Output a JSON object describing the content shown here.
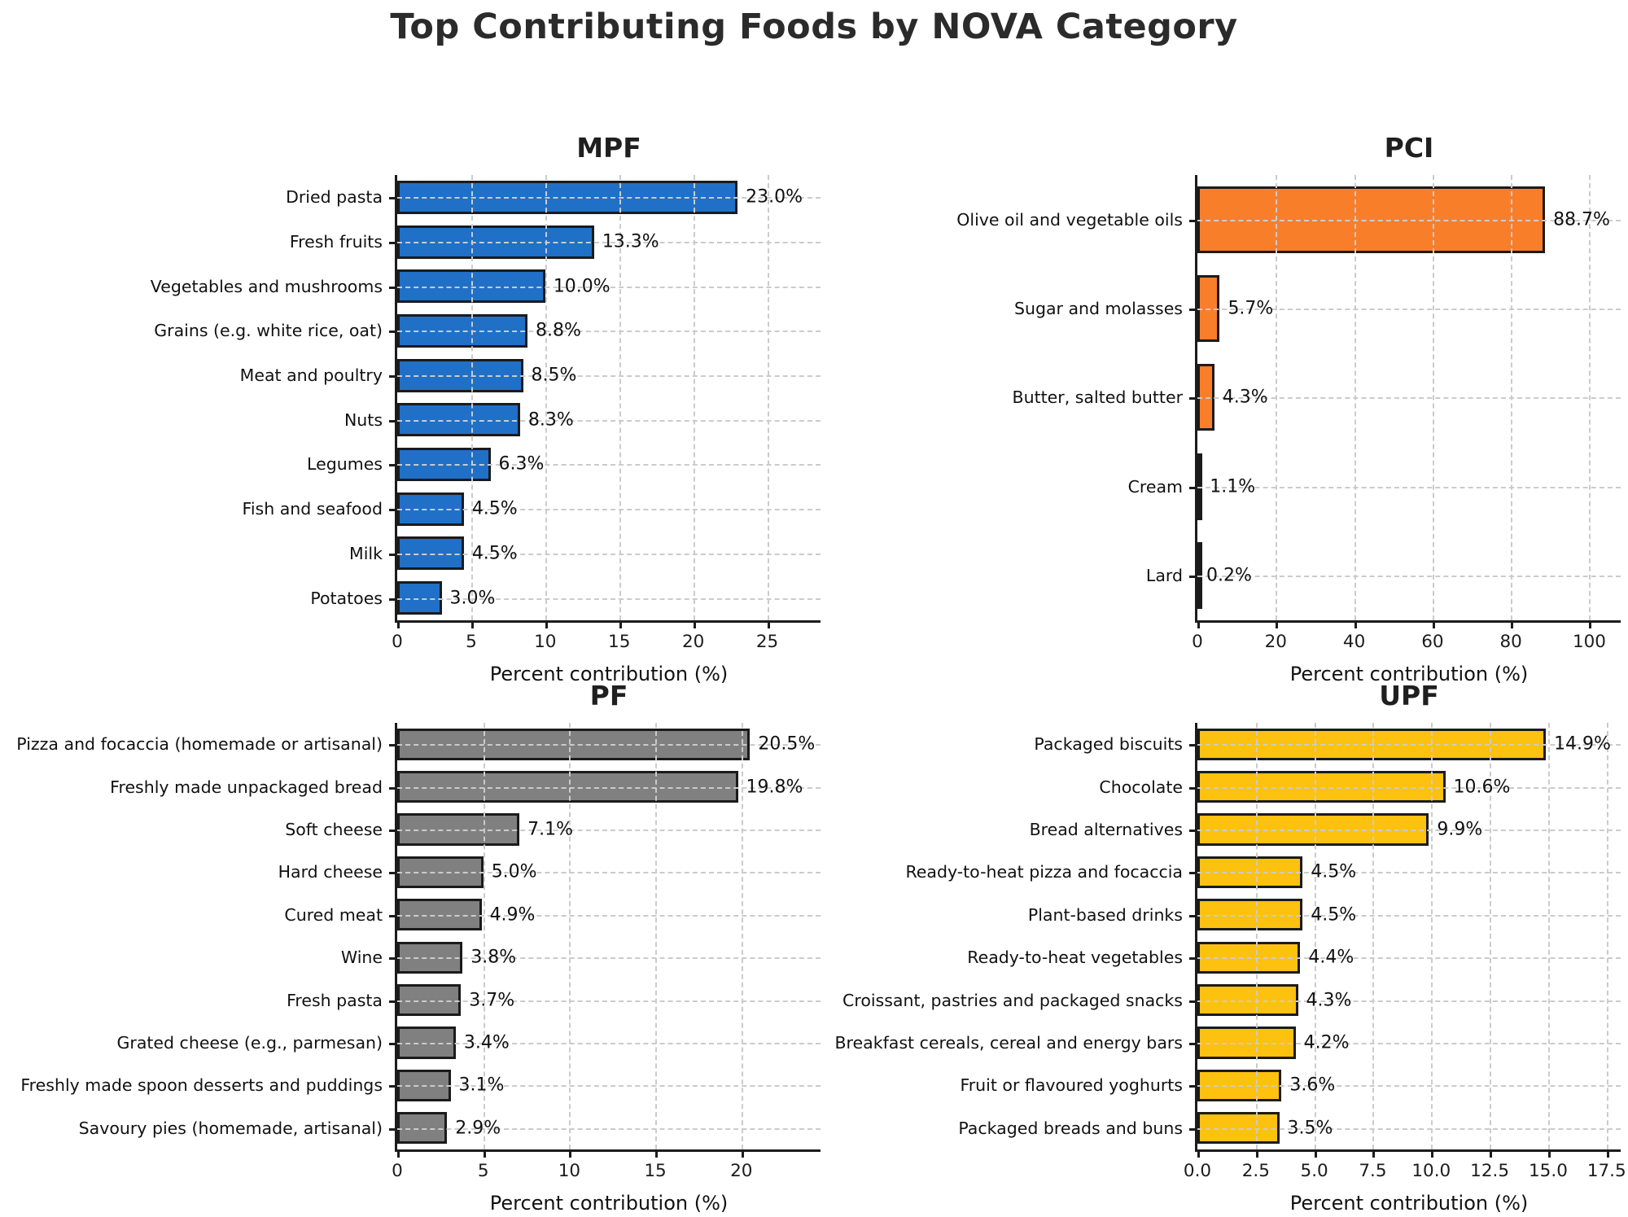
{
  "figure": {
    "title": "Top Contributing Foods by NOVA Category"
  },
  "chart_data": [
    {
      "type": "bar",
      "orientation": "horizontal",
      "title": "MPF",
      "bar_color": "#2070c8",
      "edge_color": "#1b1b1b",
      "grid": "dashed",
      "legend": "none",
      "categories": [
        "Dried pasta",
        "Fresh fruits",
        "Vegetables and mushrooms",
        "Grains (e.g. white rice, oat)",
        "Meat and poultry",
        "Nuts",
        "Legumes",
        "Fish and seafood",
        "Milk",
        "Potatoes"
      ],
      "values": [
        23.0,
        13.3,
        10.0,
        8.8,
        8.5,
        8.3,
        6.3,
        4.5,
        4.5,
        3.0
      ],
      "value_labels": [
        "23.0%",
        "13.3%",
        "10.0%",
        "8.8%",
        "8.5%",
        "8.3%",
        "6.3%",
        "4.5%",
        "4.5%",
        "3.0%"
      ],
      "xticks": [
        0,
        5,
        10,
        15,
        20,
        25
      ],
      "xtick_labels": [
        "0",
        "5",
        "10",
        "15",
        "20",
        "25"
      ],
      "xlim": [
        0,
        28.6
      ],
      "xlabel": "Percent contribution (%)"
    },
    {
      "type": "bar",
      "orientation": "horizontal",
      "title": "PCI",
      "bar_color": "#f97e2a",
      "edge_color": "#1b1b1b",
      "grid": "dashed",
      "legend": "none",
      "categories": [
        "Olive oil and vegetable oils",
        "Sugar and molasses",
        "Butter, salted butter",
        "Cream",
        "Lard"
      ],
      "values": [
        88.7,
        5.7,
        4.3,
        1.1,
        0.2
      ],
      "value_labels": [
        "88.7%",
        "5.7%",
        "4.3%",
        "1.1%",
        "0.2%"
      ],
      "xticks": [
        0,
        20,
        40,
        60,
        80,
        100
      ],
      "xtick_labels": [
        "0",
        "20",
        "40",
        "60",
        "80",
        "100"
      ],
      "xlim": [
        0,
        108
      ],
      "xlabel": "Percent contribution (%)"
    },
    {
      "type": "bar",
      "orientation": "horizontal",
      "title": "PF",
      "bar_color": "#808080",
      "edge_color": "#1b1b1b",
      "grid": "dashed",
      "legend": "none",
      "categories": [
        "Pizza and focaccia (homemade or artisanal)",
        "Freshly made unpackaged bread",
        "Soft cheese",
        "Hard cheese",
        "Cured meat",
        "Wine",
        "Fresh pasta",
        "Grated cheese (e.g., parmesan)",
        "Freshly made spoon desserts and puddings",
        "Savoury pies (homemade, artisanal)"
      ],
      "values": [
        20.5,
        19.8,
        7.1,
        5.0,
        4.9,
        3.8,
        3.7,
        3.4,
        3.1,
        2.9
      ],
      "value_labels": [
        "20.5%",
        "19.8%",
        "7.1%",
        "5.0%",
        "4.9%",
        "3.8%",
        "3.7%",
        "3.4%",
        "3.1%",
        "2.9%"
      ],
      "xticks": [
        0,
        5,
        10,
        15,
        20
      ],
      "xtick_labels": [
        "0",
        "5",
        "10",
        "15",
        "20"
      ],
      "xlim": [
        0,
        24.6
      ],
      "xlabel": "Percent contribution (%)"
    },
    {
      "type": "bar",
      "orientation": "horizontal",
      "title": "UPF",
      "bar_color": "#fdc10f",
      "edge_color": "#1b1b1b",
      "grid": "dashed",
      "legend": "none",
      "categories": [
        "Packaged biscuits",
        "Chocolate",
        "Bread alternatives",
        "Ready-to-heat pizza and focaccia",
        "Plant-based drinks",
        "Ready-to-heat vegetables",
        "Croissant, pastries and packaged snacks",
        "Breakfast cereals, cereal and energy bars",
        "Fruit or flavoured yoghurts",
        "Packaged breads and buns"
      ],
      "values": [
        14.9,
        10.6,
        9.9,
        4.5,
        4.5,
        4.4,
        4.3,
        4.2,
        3.6,
        3.5
      ],
      "value_labels": [
        "14.9%",
        "10.6%",
        "9.9%",
        "4.5%",
        "4.5%",
        "4.4%",
        "4.3%",
        "4.2%",
        "3.6%",
        "3.5%"
      ],
      "xticks": [
        0,
        2.5,
        5,
        7.5,
        10,
        12.5,
        15,
        17.5
      ],
      "xtick_labels": [
        "0.0",
        "2.5",
        "5.0",
        "7.5",
        "10.0",
        "12.5",
        "15.0",
        "17.5"
      ],
      "xlim": [
        0,
        18.1
      ],
      "xlabel": "Percent contribution (%)"
    }
  ]
}
